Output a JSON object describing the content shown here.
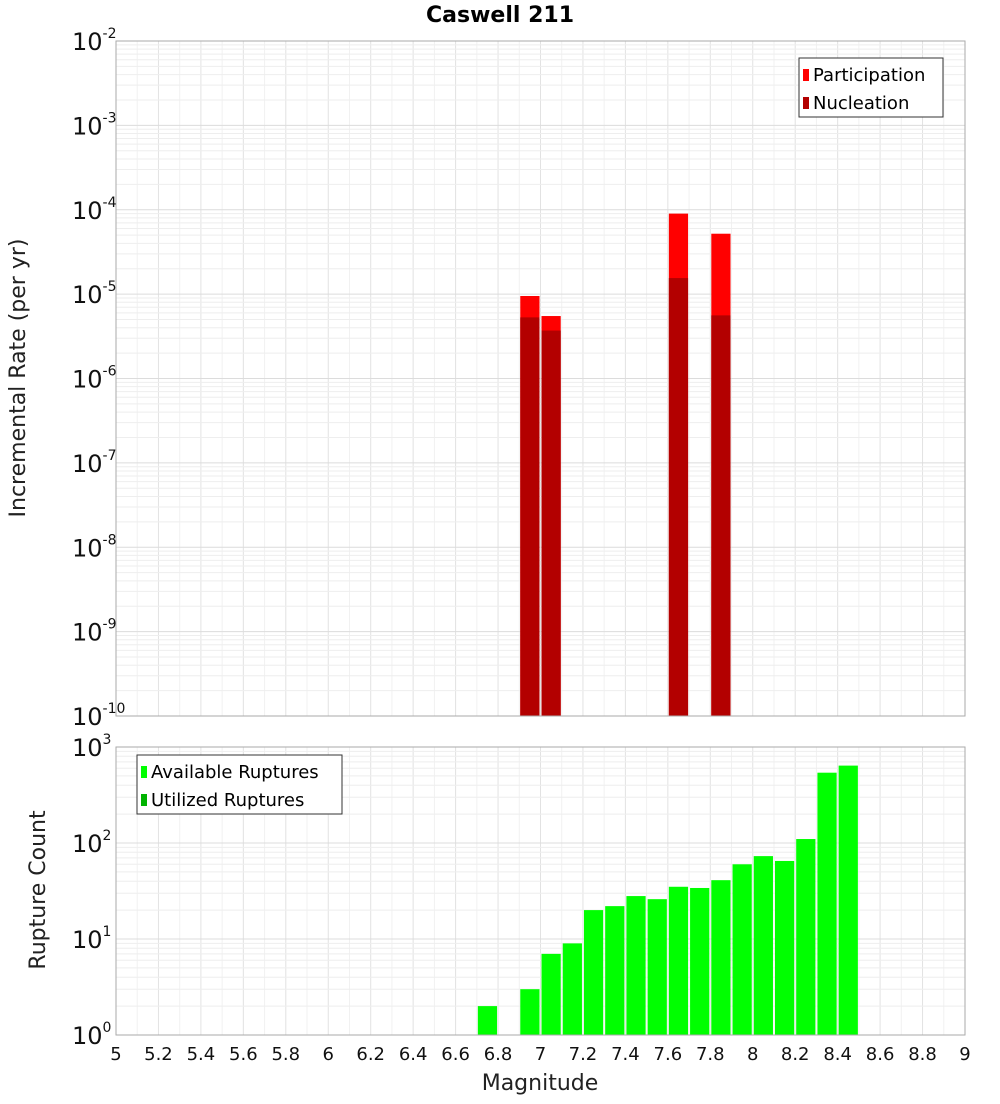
{
  "chart_data": [
    {
      "type": "bar",
      "title": "Caswell 211",
      "ylabel": "Incremental Rate (per yr)",
      "yscale": "log",
      "ylim_exponents": [
        -10,
        -2
      ],
      "ytick_exponents": [
        -10,
        -9,
        -8,
        -7,
        -6,
        -5,
        -4,
        -3,
        -2
      ],
      "xlim": [
        5,
        9
      ],
      "bin_width": 0.1,
      "legend": "top-right",
      "grid": true,
      "series": [
        {
          "name": "Participation",
          "color": "#ff0000",
          "x": [
            6.95,
            7.05,
            7.65,
            7.85
          ],
          "values": [
            9.5e-06,
            5.5e-06,
            9e-05,
            5.2e-05
          ]
        },
        {
          "name": "Nucleation",
          "color": "#b30000",
          "x": [
            6.95,
            7.05,
            7.65,
            7.85
          ],
          "values": [
            5.3e-06,
            3.7e-06,
            1.55e-05,
            5.6e-06
          ]
        }
      ]
    },
    {
      "type": "bar",
      "xlabel": "Magnitude",
      "ylabel": "Rupture Count",
      "yscale": "log",
      "ylim_exponents": [
        0,
        3
      ],
      "ytick_exponents": [
        0,
        1,
        2,
        3
      ],
      "xlim": [
        5,
        9
      ],
      "bin_width": 0.1,
      "xticks": [
        "5",
        "5.2",
        "5.4",
        "5.6",
        "5.8",
        "6",
        "6.2",
        "6.4",
        "6.6",
        "6.8",
        "7",
        "7.2",
        "7.4",
        "7.6",
        "7.8",
        "8",
        "8.2",
        "8.4",
        "8.6",
        "8.8",
        "9"
      ],
      "legend": "top-left",
      "grid": true,
      "series": [
        {
          "name": "Available Ruptures",
          "color": "#00ff00",
          "x": [
            6.75,
            6.85,
            6.95,
            7.05,
            7.15,
            7.25,
            7.35,
            7.45,
            7.55,
            7.65,
            7.75,
            7.85,
            7.95,
            8.05,
            8.15,
            8.25,
            8.35,
            8.45
          ],
          "values": [
            2,
            1,
            3,
            7,
            9,
            20,
            22,
            28,
            26,
            35,
            34,
            41,
            60,
            73,
            65,
            110,
            540,
            640
          ]
        },
        {
          "name": "Utilized Ruptures",
          "color": "#00b300",
          "x": [
            6.95,
            7.05,
            7.65,
            7.85
          ],
          "values": [
            1,
            1,
            1,
            1
          ]
        }
      ]
    }
  ]
}
